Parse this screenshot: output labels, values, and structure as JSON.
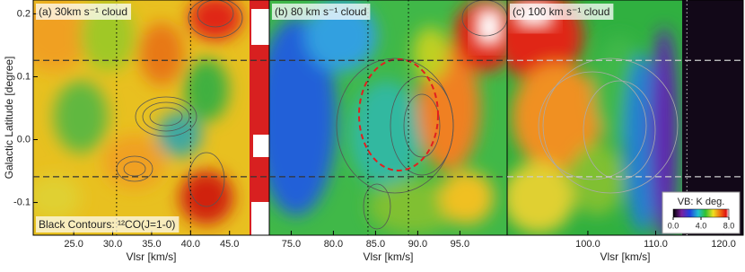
{
  "chart_data": [
    {
      "type": "heatmap",
      "title": "(a) 30km s⁻¹ cloud",
      "xlabel": "Vlsr [km/s]",
      "ylabel": "Galactic Latitude [degree]",
      "annotation": "Black Contours: ¹²CO(J=1-0)",
      "xlim": [
        19.8,
        50.1
      ],
      "xticks": [
        {
          "value": 25,
          "label": "25.0"
        },
        {
          "value": 30,
          "label": "30.0"
        },
        {
          "value": 35,
          "label": "35.0"
        },
        {
          "value": 40,
          "label": "40.0"
        },
        {
          "value": 45,
          "label": "45.0"
        }
      ],
      "ylim": [
        -0.152,
        0.222
      ],
      "yticks": [
        0.2,
        0.1,
        {
          "value": 0,
          "label": "0.0"
        },
        -0.1
      ],
      "hlines": [
        0.126,
        -0.059
      ],
      "vlines": [
        30.5,
        40.0
      ]
    },
    {
      "type": "heatmap",
      "title": "(b) 80 km s⁻¹ cloud",
      "xlabel": "Vlsr [km/s]",
      "xlim": [
        72.4,
        100.6
      ],
      "xticks": [
        {
          "value": 75,
          "label": "75.0"
        },
        {
          "value": 80,
          "label": "80.0"
        },
        {
          "value": 85,
          "label": "85.0"
        },
        {
          "value": 90,
          "label": "90.0"
        },
        {
          "value": 95,
          "label": "95.0"
        }
      ],
      "ylim": [
        -0.152,
        0.222
      ],
      "hlines": [
        0.126,
        -0.059
      ],
      "vlines": [
        84.1,
        88.9
      ]
    },
    {
      "type": "heatmap",
      "title": "(c) 100 km s⁻¹ cloud",
      "xlabel": "Vlsr [km/s]",
      "xlim": [
        88.1,
        122.9
      ],
      "xticks": [
        {
          "value": 100,
          "label": "100.0"
        },
        {
          "value": 110,
          "label": "110.0"
        },
        {
          "value": 120,
          "label": "120.0"
        }
      ],
      "ylim": [
        -0.152,
        0.222
      ],
      "hlines": [
        0.126,
        -0.059
      ],
      "vlines": [
        114.6
      ],
      "colorbar": {
        "title": "VB: K deg.",
        "lim": [
          0,
          8
        ],
        "ticks": [
          {
            "value": 0,
            "label": "0.0"
          },
          {
            "value": 4,
            "label": "4.0"
          },
          {
            "value": 8,
            "label": "8.0"
          }
        ]
      }
    }
  ]
}
